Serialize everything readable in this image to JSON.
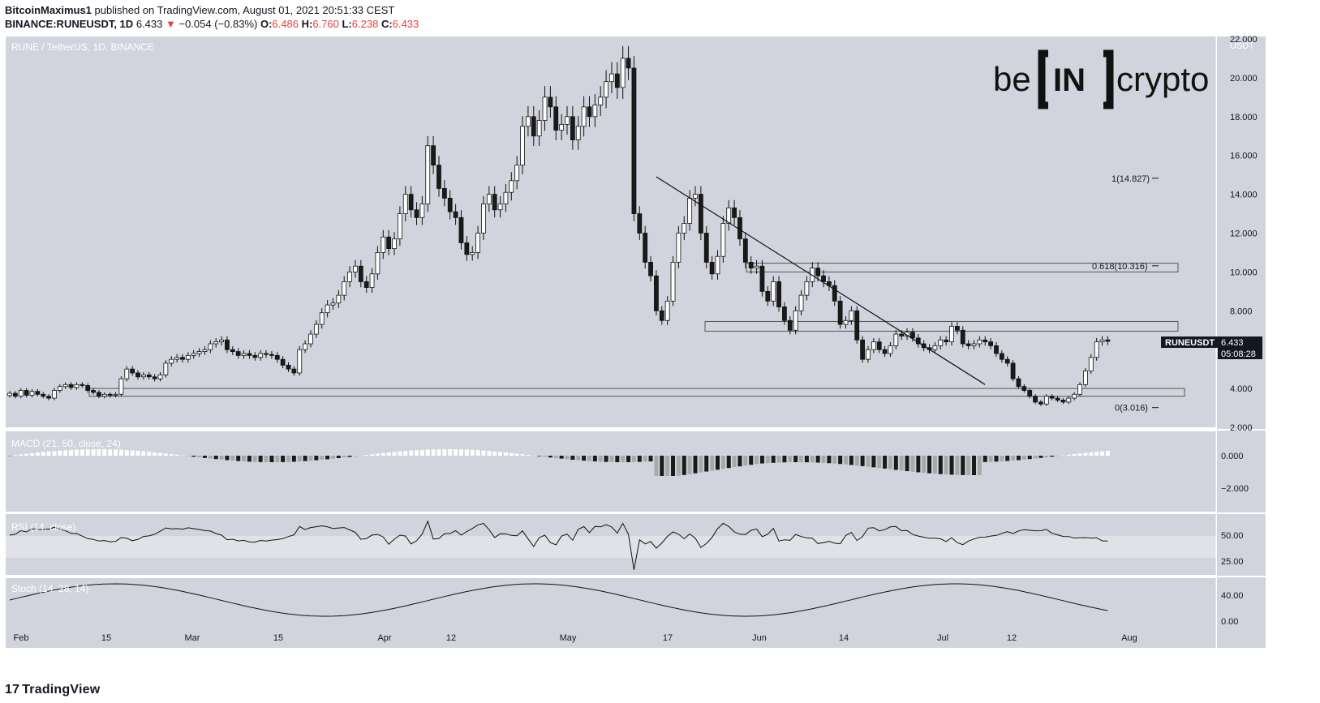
{
  "header": {
    "author": "BitcoinMaximus1",
    "published_text": " published on TradingView.com, August 01, 2021 20:51:33 CEST",
    "symbol": "BINANCE:RUNEUSDT, 1D",
    "last": "6.433",
    "change_arrow": "▼",
    "change": "−0.054 (−0.83%)",
    "o_label": "O:",
    "o_value": "6.486",
    "h_label": "H:",
    "h_value": "6.760",
    "l_label": "L:",
    "l_value": "6.238",
    "c_label": "C:",
    "c_value": "6.433"
  },
  "footer": {
    "brand": "TradingView",
    "brand_icon": "tradingview-logo-icon"
  },
  "watermark": {
    "pre": "be",
    "box": "IN",
    "post": "crypto"
  },
  "colors": {
    "background": "#d1d4dc",
    "up_candle": "#ffffff",
    "down_candle": "#1a1a1a",
    "accent_red": "#e0453f",
    "macd_hist_dark": "#1a1a1a",
    "macd_hist_light": "#a9a9a9"
  },
  "chart_data": [
    {
      "type": "candlestick",
      "title": "RUNE / TetherUS, 1D, BINANCE",
      "ylabel": "USDT",
      "y_ticks": [
        "2.000",
        "4.000",
        "6.000",
        "8.000",
        "10.000",
        "12.000",
        "14.000",
        "16.000",
        "18.000",
        "20.000",
        "22.000"
      ],
      "ylim": [
        2.0,
        22.0
      ],
      "x_ticks": [
        "Feb",
        "15",
        "Mar",
        "15",
        "Apr",
        "12",
        "May",
        "17",
        "Jun",
        "14",
        "Jul",
        "12",
        "Aug"
      ],
      "price_label": {
        "symbol": "RUNEUSDT",
        "value": "6.433",
        "countdown": "05:08:28"
      },
      "fib_levels": [
        {
          "label": "1(14.827)",
          "value": 14.827
        },
        {
          "label": "0.618(10.316)",
          "value": 10.316
        },
        {
          "label": "0(3.016)",
          "value": 3.016
        }
      ],
      "zones": [
        {
          "low": 10.0,
          "high": 10.45
        },
        {
          "low": 6.95,
          "high": 7.45
        },
        {
          "low": 3.6,
          "high": 4.0
        }
      ],
      "descending_trendline": [
        {
          "date": "2021-05-26",
          "value": 14.9
        },
        {
          "date": "2021-07-24",
          "value": 4.2
        }
      ],
      "closes": [
        3.75,
        3.6,
        3.9,
        3.65,
        3.85,
        3.7,
        3.6,
        3.5,
        3.9,
        4.1,
        4.2,
        4.05,
        4.2,
        4.15,
        3.9,
        3.8,
        3.6,
        3.7,
        3.65,
        3.7,
        4.5,
        5.0,
        4.8,
        4.6,
        4.7,
        4.6,
        4.5,
        4.7,
        5.3,
        5.5,
        5.6,
        5.5,
        5.7,
        5.8,
        5.9,
        6.0,
        6.3,
        6.4,
        6.5,
        6.0,
        5.9,
        5.7,
        5.8,
        5.7,
        5.6,
        5.8,
        5.75,
        5.7,
        5.5,
        5.2,
        5.0,
        4.8,
        6.0,
        6.3,
        6.8,
        7.3,
        7.9,
        8.3,
        8.4,
        8.8,
        9.5,
        10.0,
        10.3,
        9.5,
        9.2,
        9.9,
        11.0,
        11.8,
        11.2,
        11.7,
        13.0,
        14.0,
        13.2,
        12.8,
        13.5,
        16.5,
        15.5,
        14.3,
        13.8,
        13.1,
        12.8,
        11.5,
        10.9,
        11.0,
        12.0,
        13.5,
        14.0,
        13.2,
        13.5,
        14.1,
        14.7,
        15.5,
        17.5,
        18.0,
        17.0,
        17.8,
        19.0,
        18.5,
        17.3,
        17.6,
        18.0,
        16.8,
        17.5,
        18.5,
        18.0,
        18.6,
        19.0,
        19.8,
        20.2,
        19.5,
        21.0,
        20.5,
        13.0,
        12.0,
        10.5,
        9.8,
        8.0,
        7.5,
        8.5,
        10.5,
        12.0,
        12.5,
        13.8,
        14.0,
        12.0,
        10.5,
        9.9,
        10.8,
        12.5,
        13.3,
        12.8,
        11.7,
        10.5,
        10.2,
        10.3,
        9.0,
        8.5,
        9.5,
        8.2,
        7.5,
        7.0,
        8.0,
        8.8,
        9.5,
        10.2,
        9.8,
        9.5,
        9.3,
        8.5,
        7.3,
        7.5,
        8.0,
        6.5,
        5.5,
        6.0,
        6.4,
        6.0,
        5.8,
        6.2,
        6.8,
        6.7,
        6.9,
        6.6,
        6.3,
        6.1,
        6.0,
        6.2,
        6.5,
        6.4,
        7.2,
        7.0,
        6.3,
        6.2,
        6.3,
        6.5,
        6.4,
        6.2,
        5.8,
        5.5,
        5.3,
        4.5,
        4.1,
        3.9,
        3.6,
        3.3,
        3.2,
        3.6,
        3.5,
        3.4,
        3.3,
        3.5,
        3.7,
        4.2,
        4.9,
        5.6,
        6.4,
        6.5,
        6.43
      ],
      "series": [
        {
          "name": "MACD (21, 50, close, 24)",
          "y_ticks": [
            "0.000",
            "−2.000"
          ]
        },
        {
          "name": "RSI (14, close)",
          "y_ticks": [
            "50.00",
            "25.00"
          ]
        },
        {
          "name": "Stoch (14, 28, 14)",
          "y_ticks": [
            "40.00",
            "0.00"
          ]
        }
      ]
    }
  ]
}
